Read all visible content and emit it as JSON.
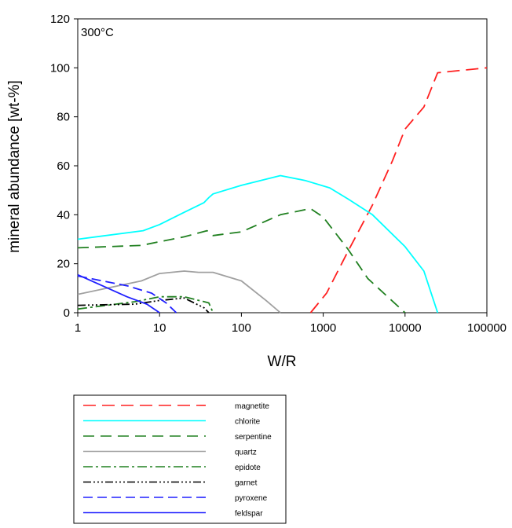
{
  "chart_data": {
    "type": "line",
    "xlabel": "W/R",
    "ylabel": "mineral abundance [wt-%]",
    "annotation": "300°C",
    "x_scale": "log",
    "xlim": [
      1,
      100000
    ],
    "ylim": [
      0,
      120
    ],
    "x_ticks": [
      "1",
      "10",
      "100",
      "1000",
      "10000",
      "100000"
    ],
    "y_ticks": [
      "0",
      "20",
      "40",
      "60",
      "80",
      "100",
      "120"
    ],
    "grid": false,
    "legend_position": "below",
    "series": [
      {
        "name": "magnetite",
        "color": "#ff2020",
        "dash": "16,8",
        "x": [
          700,
          1100,
          2000,
          4000,
          7000,
          10000,
          17000,
          25000,
          100000
        ],
        "y": [
          0,
          8,
          25,
          44,
          62,
          75,
          84,
          98,
          100
        ]
      },
      {
        "name": "chlorite",
        "color": "#00ffff",
        "dash": "",
        "x": [
          1,
          6.3,
          10,
          20,
          35,
          40,
          45,
          100,
          300,
          600,
          1200,
          2000,
          4000,
          10000,
          17000,
          25000
        ],
        "y": [
          30,
          33.5,
          36,
          41,
          45,
          47,
          48.5,
          52,
          56,
          54,
          51,
          46.5,
          40,
          27,
          17,
          0
        ],
        "y_text": [
          "30",
          "33.5",
          "36",
          "41",
          "45",
          "47",
          "48.5",
          "52",
          "56",
          "54",
          "51",
          "46.5",
          "40",
          "27",
          "17",
          "0"
        ]
      },
      {
        "name": "serpentine",
        "color": "#208020",
        "dash": "14,8",
        "x": [
          1,
          6,
          10,
          20,
          38,
          45,
          100,
          300,
          700,
          1000,
          2000,
          3500,
          10000
        ],
        "y": [
          26.5,
          27.5,
          29,
          31,
          33.5,
          31.5,
          33,
          40,
          42.5,
          39,
          26,
          14,
          0
        ],
        "y_text": [
          "26.5",
          "27.5",
          "29",
          "31",
          "33.5",
          "31.5",
          "33",
          "40",
          "42.5",
          "39",
          "26",
          "14",
          "0"
        ]
      },
      {
        "name": "quartz",
        "color": "#a0a0a0",
        "dash": "",
        "x": [
          1,
          6,
          10,
          20,
          30,
          45,
          100,
          200,
          300
        ],
        "y": [
          7.5,
          13,
          16,
          17,
          16.5,
          16.5,
          13,
          5,
          0
        ],
        "y_text": [
          "7.5",
          "13",
          "16",
          "17",
          "16.5",
          "16.5",
          "13",
          "5",
          "0"
        ]
      },
      {
        "name": "epidote",
        "color": "#208020",
        "dash": "12,4,3,4",
        "x": [
          1,
          5,
          10,
          20,
          40,
          45
        ],
        "y": [
          1.5,
          4.5,
          6.5,
          6.5,
          4,
          0
        ],
        "y_text": [
          "1.5",
          "4.5",
          "6.5",
          "6.5",
          "4",
          "0"
        ]
      },
      {
        "name": "garnet",
        "color": "#000000",
        "dash": "10,3,2,3,2,3,2,3",
        "x": [
          1,
          5,
          10,
          20,
          35,
          40
        ],
        "y": [
          3,
          3.5,
          5,
          6,
          2,
          0
        ]
      },
      {
        "name": "pyroxene",
        "color": "#2020ff",
        "dash": "12,6",
        "x": [
          1,
          4,
          8,
          12,
          16
        ],
        "y": [
          15,
          11,
          8,
          4,
          0
        ]
      },
      {
        "name": "feldspar",
        "color": "#2020ff",
        "dash": "",
        "x": [
          1,
          2,
          4,
          7,
          10
        ],
        "y": [
          15.5,
          11,
          6.5,
          3.5,
          0
        ],
        "y_text": [
          "15.5",
          "11",
          "6.5",
          "3.5",
          "0"
        ]
      }
    ]
  }
}
